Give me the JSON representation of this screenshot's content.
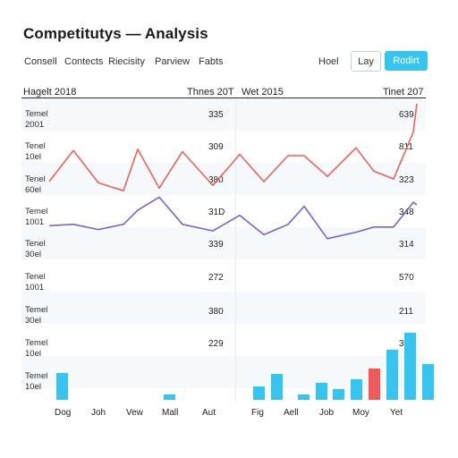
{
  "header": {
    "title": "Competitutys — Analysis",
    "tabs": [
      "Consell",
      "Contects",
      "Riecisity",
      "Parview",
      "Fabts"
    ],
    "hoel_label": "Hoel",
    "lay_label": "Lay",
    "redirect_label": "Rodirt"
  },
  "table": {
    "left_header": "Hagelt 2018",
    "mid_header_left": "Thnes 20T",
    "mid_header_right": "Wet 2015",
    "right_header": "Tinet 207",
    "rows": [
      {
        "label1": "Temel",
        "label2": "2001",
        "left_value": "335",
        "right_value": "639"
      },
      {
        "label1": "Tenel",
        "label2": "10el",
        "left_value": "309",
        "right_value": "811"
      },
      {
        "label1": "Tenel",
        "label2": "60el",
        "left_value": "380",
        "right_value": "323"
      },
      {
        "label1": "Temel",
        "label2": "1001",
        "left_value": "31D",
        "right_value": "348"
      },
      {
        "label1": "Tenel",
        "label2": "30el",
        "left_value": "339",
        "right_value": "314"
      },
      {
        "label1": "Tenel",
        "label2": "1001",
        "left_value": "272",
        "right_value": "570"
      },
      {
        "label1": "Temel",
        "label2": "30el",
        "left_value": "380",
        "right_value": "211"
      },
      {
        "label1": "Temel",
        "label2": "10el",
        "left_value": "229",
        "right_value": "330"
      },
      {
        "label1": "Temel",
        "label2": "10el",
        "left_value": "",
        "right_value": ""
      }
    ]
  },
  "x_labels_left": [
    "Dog",
    "Joh",
    "Vew",
    "Mall",
    "Aut"
  ],
  "x_labels_right": [
    "Fig",
    "Aell",
    "Job",
    "Moy",
    "Yet"
  ],
  "chart_data": {
    "type": "line",
    "series": [
      {
        "color": "#e8625c",
        "values": [
          6.0,
          8.4,
          5.9,
          5.3,
          8.5,
          5.5,
          8.3,
          5.7,
          8.1,
          6.0,
          8.0,
          8.0,
          6.4,
          8.6,
          6.8,
          6.2,
          9.8,
          12.0
        ]
      },
      {
        "color": "#7b63c4",
        "values": [
          2.6,
          2.7,
          2.3,
          2.7,
          3.8,
          4.8,
          2.7,
          2.2,
          3.4,
          1.9,
          2.7,
          4.1,
          1.6,
          2.1,
          2.5,
          2.5,
          4.4,
          4.2
        ]
      }
    ],
    "bars_color": "#36c4f0",
    "bars_accent_color": "#f15a5a",
    "bars": [
      {
        "h": 30,
        "accent": false
      },
      {
        "h": 0,
        "accent": false
      },
      {
        "h": 0,
        "accent": false
      },
      {
        "h": 6,
        "accent": false
      },
      {
        "h": 0,
        "accent": false
      },
      {
        "h": 0,
        "accent": false
      },
      {
        "h": 15,
        "accent": false
      },
      {
        "h": 29,
        "accent": false
      },
      {
        "h": 6,
        "accent": false
      },
      {
        "h": 19,
        "accent": false
      },
      {
        "h": 12,
        "accent": false
      },
      {
        "h": 23,
        "accent": false
      },
      {
        "h": 35,
        "accent": true
      },
      {
        "h": 56,
        "accent": false
      },
      {
        "h": 75,
        "accent": false
      },
      {
        "h": 40,
        "accent": false
      },
      {
        "h": 66,
        "accent": false
      }
    ]
  }
}
